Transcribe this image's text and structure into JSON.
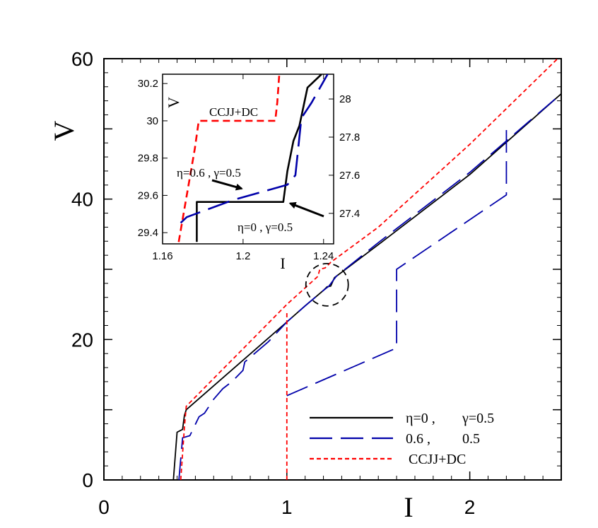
{
  "chart_data": [
    {
      "type": "line",
      "xlabel": "I",
      "ylabel": "V",
      "xlim": [
        0,
        2.5
      ],
      "ylim": [
        0,
        60
      ],
      "xticks": [
        {
          "value": 0,
          "label": "0"
        },
        {
          "value": 1,
          "label": "1"
        },
        {
          "value": 2,
          "label": "2"
        }
      ],
      "yticks": [
        {
          "value": 0,
          "label": "0"
        },
        {
          "value": 20,
          "label": "20"
        },
        {
          "value": 40,
          "label": "40"
        },
        {
          "value": 60,
          "label": "60"
        }
      ],
      "grid": false,
      "legend_position": "bottom-right",
      "legend": [
        {
          "series": 0,
          "text_a": "η=0 ,",
          "text_b": "γ=0.5"
        },
        {
          "series": 1,
          "text_a": "0.6 ,",
          "text_b": "0.5"
        },
        {
          "series": 2,
          "text_a": "CCJJ+DC",
          "text_b": ""
        }
      ],
      "series": [
        {
          "color": "#000000",
          "dash": "solid",
          "points": [
            [
              0.38,
              0
            ],
            [
              0.4,
              6.8
            ],
            [
              0.43,
              7.2
            ],
            [
              0.44,
              9.2
            ],
            [
              0.45,
              10
            ],
            [
              1.0,
              22.5
            ],
            [
              1.1,
              24.8
            ],
            [
              1.2,
              27.0
            ],
            [
              1.22,
              27.5
            ],
            [
              1.24,
              27.6
            ],
            [
              1.26,
              28.8
            ],
            [
              1.5,
              33.5
            ],
            [
              2.0,
              43.5
            ],
            [
              2.5,
              55
            ]
          ]
        },
        {
          "color": "#0000aa",
          "dash": "long",
          "points": [
            [
              0.41,
              0
            ],
            [
              0.43,
              6
            ],
            [
              0.47,
              6.3
            ],
            [
              0.52,
              9
            ],
            [
              0.55,
              9.5
            ],
            [
              0.6,
              11.5
            ],
            [
              0.65,
              13
            ],
            [
              0.7,
              14
            ],
            [
              0.76,
              15.6
            ],
            [
              0.77,
              16.8
            ],
            [
              0.9,
              19.7
            ],
            [
              1.0,
              22.5
            ],
            [
              1.1,
              24.8
            ],
            [
              1.2,
              27.0
            ],
            [
              1.23,
              27.6
            ],
            [
              1.27,
              29.0
            ],
            [
              1.5,
              33.8
            ],
            [
              2.0,
              43.8
            ],
            [
              2.5,
              55
            ]
          ]
        },
        {
          "color": "#0000aa",
          "dash": "long",
          "points": [
            [
              1.0,
              12.0
            ],
            [
              1.6,
              18.8
            ],
            [
              1.6,
              30.0
            ],
            [
              2.2,
              40.6
            ],
            [
              2.2,
              50.2
            ]
          ]
        },
        {
          "color": "#ff0000",
          "dash": "short",
          "points": [
            [
              0.42,
              0
            ],
            [
              0.44,
              7.5
            ],
            [
              0.45,
              10.5
            ],
            [
              1.0,
              25.0
            ],
            [
              1.17,
              29.0
            ],
            [
              1.18,
              30.0
            ],
            [
              1.21,
              30.2
            ],
            [
              1.24,
              31.0
            ],
            [
              1.5,
              36.0
            ],
            [
              2.0,
              47.8
            ],
            [
              2.5,
              60.5
            ]
          ]
        },
        {
          "color": "#ff0000",
          "dash": "short",
          "points": [
            [
              1.0,
              0
            ],
            [
              1.0,
              24.0
            ]
          ]
        }
      ],
      "annotations": [
        {
          "type": "dashed-circle",
          "cx": 1.22,
          "cy": 27.8
        }
      ]
    },
    {
      "type": "line",
      "xlabel": "I",
      "ylabel": "V",
      "xlim": [
        1.16,
        1.245
      ],
      "ylim_left": [
        29.34,
        30.25
      ],
      "ylim_right": [
        27.24,
        28.13
      ],
      "xticks": [
        {
          "value": 1.16,
          "label": "1.16"
        },
        {
          "value": 1.2,
          "label": "1.2"
        },
        {
          "value": 1.24,
          "label": "1.24"
        }
      ],
      "yticks_left": [
        {
          "value": 29.4,
          "label": "29.4"
        },
        {
          "value": 29.6,
          "label": "29.6"
        },
        {
          "value": 29.8,
          "label": "29.8"
        },
        {
          "value": 30.0,
          "label": "30"
        },
        {
          "value": 30.2,
          "label": "30.2"
        }
      ],
      "yticks_right": [
        {
          "value": 27.4,
          "label": "27.4"
        },
        {
          "value": 27.6,
          "label": "27.6"
        },
        {
          "value": 27.8,
          "label": "27.8"
        },
        {
          "value": 28.0,
          "label": "28"
        }
      ],
      "series": [
        {
          "color": "#ff0000",
          "dash": "medium",
          "axis": "left",
          "points": [
            [
              1.168,
              29.35
            ],
            [
              1.172,
              29.6
            ],
            [
              1.176,
              29.85
            ],
            [
              1.178,
              30.0
            ],
            [
              1.205,
              30.0
            ],
            [
              1.216,
              30.0
            ],
            [
              1.217,
              30.1
            ],
            [
              1.218,
              30.25
            ]
          ]
        },
        {
          "color": "#000000",
          "dash": "solid",
          "axis": "right",
          "points": [
            [
              1.177,
              27.25
            ],
            [
              1.177,
              27.46
            ],
            [
              1.22,
              27.46
            ],
            [
              1.222,
              27.62
            ],
            [
              1.225,
              27.78
            ],
            [
              1.228,
              27.86
            ],
            [
              1.232,
              28.06
            ],
            [
              1.239,
              28.13
            ]
          ]
        },
        {
          "color": "#0000aa",
          "dash": "long",
          "axis": "right",
          "points": [
            [
              1.169,
              27.35
            ],
            [
              1.172,
              27.38
            ],
            [
              1.195,
              27.47
            ],
            [
              1.222,
              27.55
            ],
            [
              1.226,
              27.6
            ],
            [
              1.229,
              27.9
            ],
            [
              1.234,
              27.98
            ],
            [
              1.242,
              28.13
            ]
          ]
        }
      ],
      "annotations": [
        {
          "text": "CCJJ+DC"
        },
        {
          "text": "η=0.6 , γ=0.5",
          "arrow_to": [
            1.2,
            27.53
          ]
        },
        {
          "text": "η=0 , γ=0.5",
          "arrow_to": [
            1.222,
            27.46
          ]
        }
      ]
    }
  ]
}
